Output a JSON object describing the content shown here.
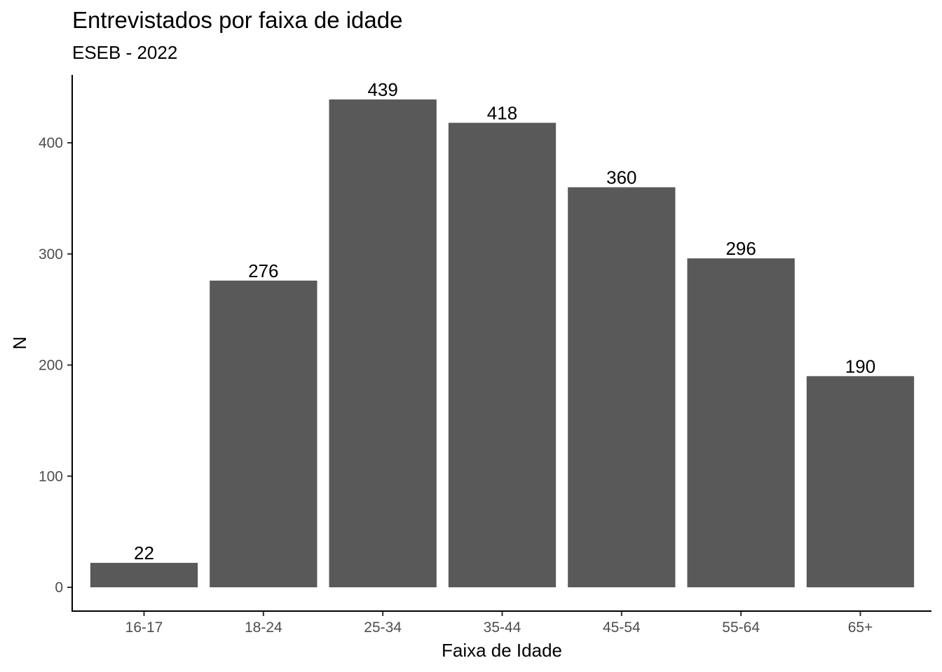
{
  "chart_data": {
    "type": "bar",
    "title": "Entrevistados por faixa de idade",
    "subtitle": "ESEB - 2022",
    "xlabel": "Faixa de Idade",
    "ylabel": "N",
    "categories": [
      "16-17",
      "18-24",
      "25-34",
      "35-44",
      "45-54",
      "55-64",
      "65+"
    ],
    "values": [
      22,
      276,
      439,
      418,
      360,
      296,
      190
    ],
    "data_labels": [
      "22",
      "276",
      "439",
      "418",
      "360",
      "296",
      "190"
    ],
    "ylim": [
      0,
      460
    ],
    "yticks": [
      0,
      100,
      200,
      300,
      400
    ],
    "ytick_labels": [
      "0",
      "100",
      "200",
      "300",
      "400"
    ],
    "bar_color": "#595959",
    "grid": false,
    "legend": "none"
  }
}
